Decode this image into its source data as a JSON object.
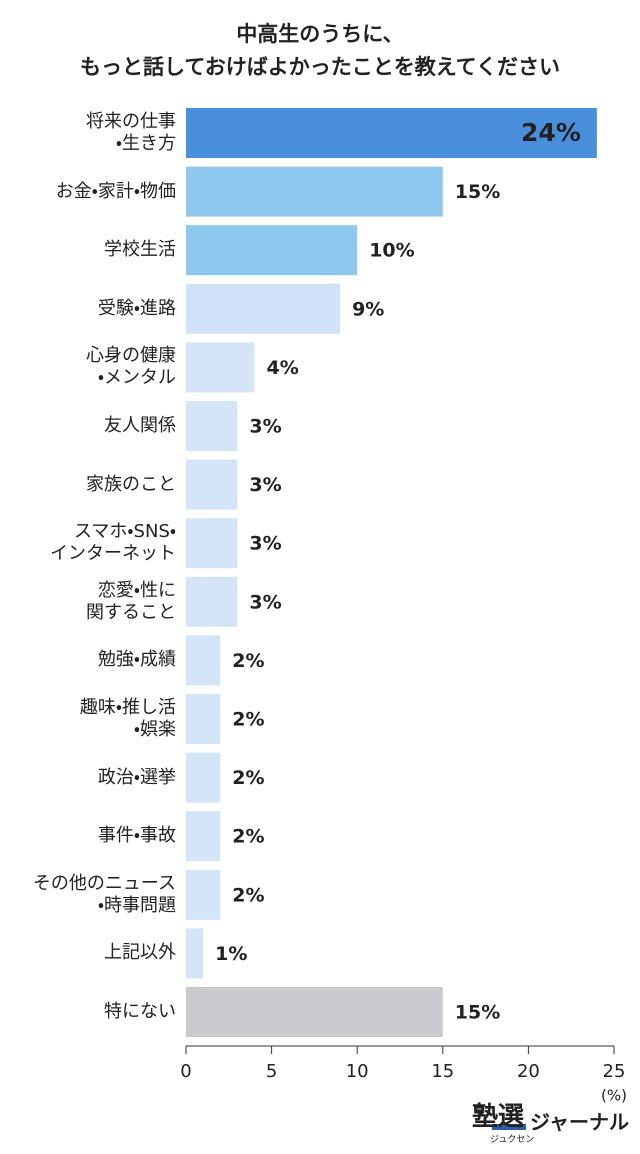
{
  "chart_data": {
    "type": "barh",
    "title": "中高生のうちに、\nもっと話しておけばよかったことを教えてください",
    "categories": [
      "将来の仕事\n・生き方",
      "お金・家計・物価",
      "学校生活",
      "受験・進路",
      "心身の健康\n・メンタル",
      "友人関係",
      "家族のこと",
      "スマホ・SNS・\nインターネット",
      "恋愛・性に\n関すること",
      "勉強・成績",
      "趣味・推し活\n・娯楽",
      "政治・選挙",
      "事件・事故",
      "その他のニュース\n・時事問題",
      "上記以外",
      "特にない"
    ],
    "values": [
      24,
      15,
      10,
      9,
      4,
      3,
      3,
      3,
      3,
      2,
      2,
      2,
      2,
      2,
      1,
      15
    ],
    "value_labels": [
      "24%",
      "15%",
      "10%",
      "9%",
      "4%",
      "3%",
      "3%",
      "3%",
      "3%",
      "2%",
      "2%",
      "2%",
      "2%",
      "2%",
      "1%",
      "15%"
    ],
    "colors": [
      "#4a8fdc",
      "#8ec8ee",
      "#8ec8ee",
      "#cfe2f7",
      "#d4e5f7",
      "#d4e5f7",
      "#d4e5f7",
      "#d4e5f7",
      "#d4e5f7",
      "#d4e5f7",
      "#d4e5f7",
      "#d4e5f7",
      "#d4e5f7",
      "#d4e5f7",
      "#d4e5f7",
      "#c9c8cc"
    ],
    "xlim": [
      0,
      25
    ],
    "xticks": [
      0,
      5,
      10,
      15,
      20,
      25
    ],
    "xlabel": "(%)"
  },
  "logo": {
    "main": "塾選",
    "sub": "ジュクセン",
    "name": "ジャーナル"
  }
}
